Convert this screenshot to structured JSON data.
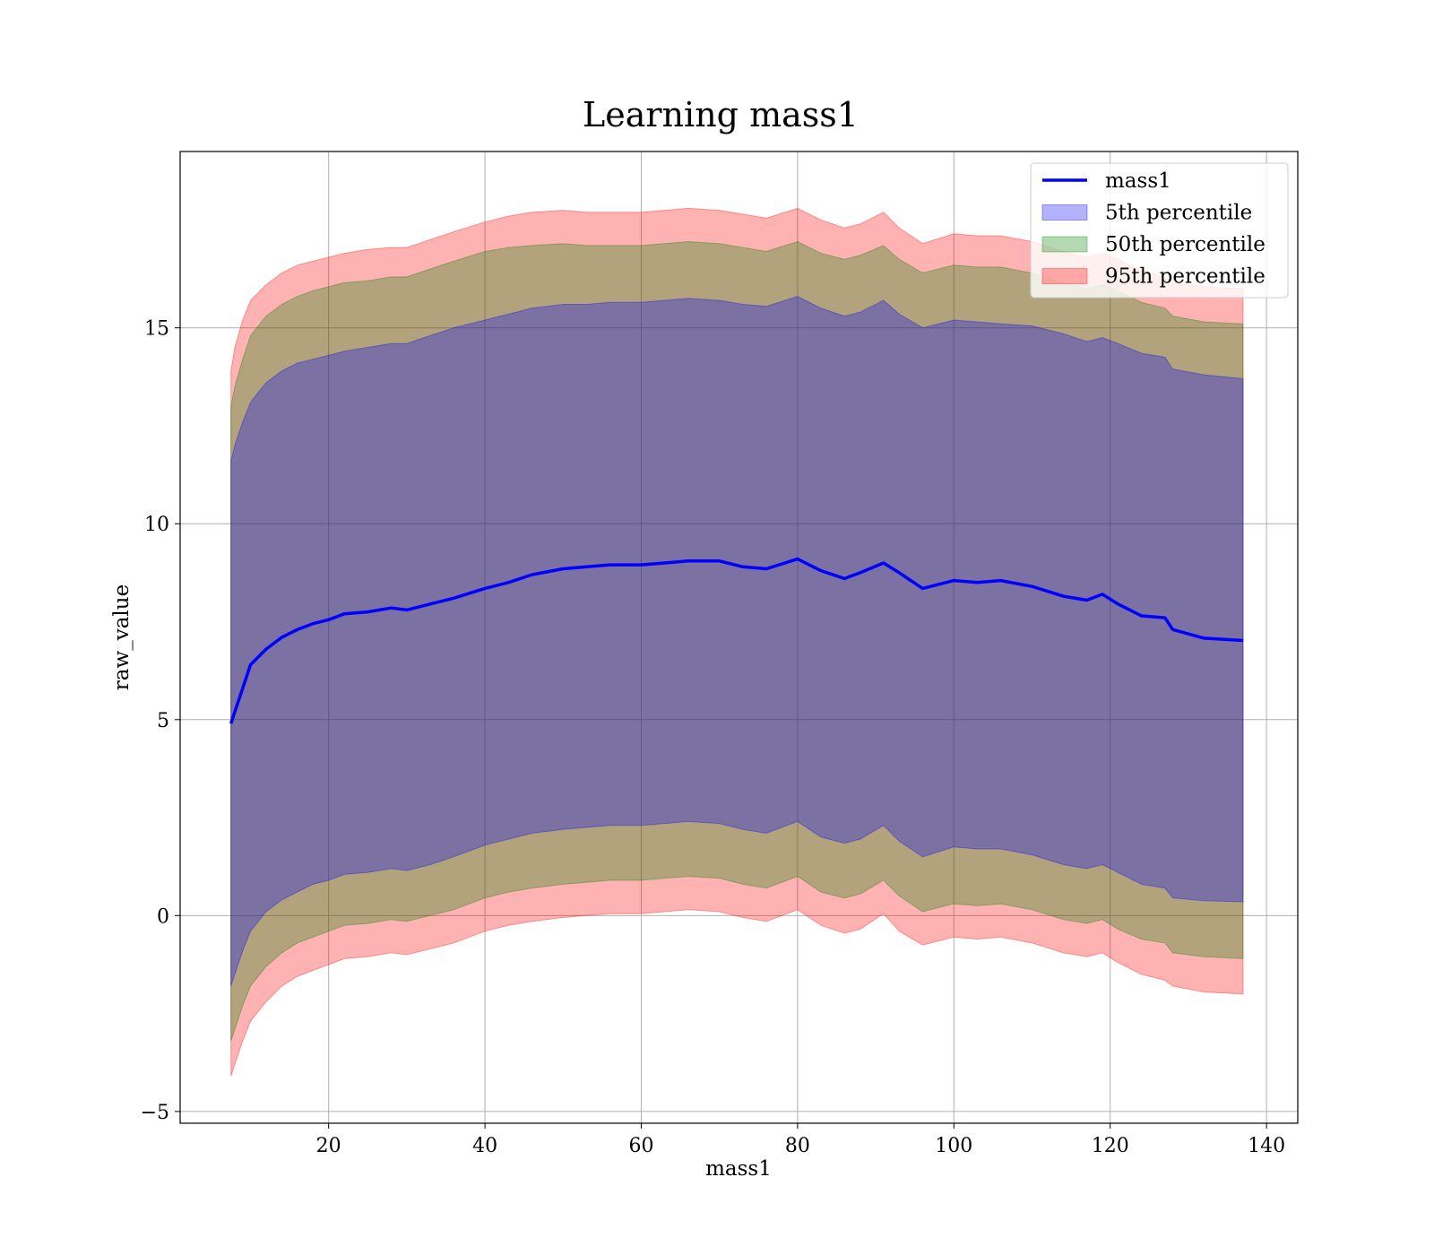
{
  "chart_data": {
    "type": "area",
    "title": "Learning mass1",
    "xlabel": "mass1",
    "ylabel": "raw_value",
    "xlim": [
      1,
      144
    ],
    "ylim": [
      -5.3,
      19.5
    ],
    "xticks": [
      20,
      40,
      60,
      80,
      100,
      120,
      140
    ],
    "yticks": [
      -5,
      0,
      5,
      10,
      15
    ],
    "grid": true,
    "legend_position": "top-right",
    "x": [
      7.5,
      8,
      9,
      10,
      12,
      14,
      16,
      18,
      20,
      22,
      25,
      28,
      30,
      33,
      36,
      40,
      43,
      46,
      50,
      53,
      56,
      60,
      63,
      66,
      70,
      73,
      76,
      80,
      83,
      86,
      88,
      91,
      93,
      96,
      100,
      103,
      106,
      110,
      114,
      117,
      119,
      121,
      124,
      127,
      128,
      132,
      137
    ],
    "series": [
      {
        "name": "mass1",
        "kind": "line",
        "color": "#0000ff",
        "values": [
          4.9,
          5.2,
          5.8,
          6.4,
          6.8,
          7.1,
          7.3,
          7.45,
          7.55,
          7.7,
          7.75,
          7.85,
          7.8,
          7.95,
          8.1,
          8.35,
          8.5,
          8.7,
          8.85,
          8.9,
          8.95,
          8.95,
          9.0,
          9.05,
          9.05,
          8.9,
          8.85,
          9.1,
          8.8,
          8.6,
          8.75,
          9.0,
          8.75,
          8.35,
          8.55,
          8.5,
          8.55,
          8.4,
          8.15,
          8.05,
          8.2,
          7.95,
          7.65,
          7.6,
          7.3,
          7.08,
          7.02
        ]
      },
      {
        "name": "5th percentile",
        "kind": "band",
        "color": "#0000ff",
        "upper": [
          11.6,
          12.0,
          12.6,
          13.1,
          13.6,
          13.9,
          14.1,
          14.2,
          14.3,
          14.4,
          14.5,
          14.6,
          14.6,
          14.8,
          15.0,
          15.2,
          15.35,
          15.5,
          15.6,
          15.6,
          15.65,
          15.65,
          15.7,
          15.75,
          15.7,
          15.6,
          15.55,
          15.8,
          15.5,
          15.3,
          15.4,
          15.7,
          15.35,
          15.0,
          15.2,
          15.15,
          15.1,
          15.05,
          14.85,
          14.65,
          14.75,
          14.6,
          14.35,
          14.25,
          13.95,
          13.8,
          13.7
        ],
        "lower": [
          -1.8,
          -1.5,
          -0.9,
          -0.4,
          0.1,
          0.4,
          0.6,
          0.8,
          0.9,
          1.05,
          1.1,
          1.2,
          1.15,
          1.3,
          1.5,
          1.8,
          1.95,
          2.1,
          2.2,
          2.25,
          2.3,
          2.3,
          2.35,
          2.4,
          2.35,
          2.2,
          2.1,
          2.4,
          2.0,
          1.85,
          1.95,
          2.3,
          1.9,
          1.5,
          1.75,
          1.7,
          1.7,
          1.55,
          1.3,
          1.2,
          1.3,
          1.1,
          0.8,
          0.7,
          0.45,
          0.38,
          0.35
        ]
      },
      {
        "name": "50th percentile",
        "kind": "band",
        "color": "#008000",
        "upper": [
          13.0,
          13.5,
          14.2,
          14.8,
          15.3,
          15.6,
          15.8,
          15.95,
          16.05,
          16.15,
          16.2,
          16.3,
          16.3,
          16.5,
          16.7,
          16.95,
          17.05,
          17.1,
          17.15,
          17.1,
          17.1,
          17.1,
          17.15,
          17.2,
          17.15,
          17.05,
          16.95,
          17.2,
          16.9,
          16.75,
          16.85,
          17.1,
          16.75,
          16.4,
          16.6,
          16.55,
          16.55,
          16.4,
          16.15,
          16.0,
          16.1,
          15.95,
          15.65,
          15.5,
          15.3,
          15.15,
          15.1
        ],
        "lower": [
          -3.2,
          -2.9,
          -2.3,
          -1.8,
          -1.3,
          -0.95,
          -0.7,
          -0.55,
          -0.4,
          -0.25,
          -0.2,
          -0.1,
          -0.15,
          0.0,
          0.15,
          0.45,
          0.6,
          0.7,
          0.8,
          0.85,
          0.9,
          0.9,
          0.95,
          1.0,
          0.95,
          0.8,
          0.7,
          1.0,
          0.6,
          0.45,
          0.55,
          0.9,
          0.5,
          0.1,
          0.3,
          0.25,
          0.3,
          0.15,
          -0.1,
          -0.2,
          -0.1,
          -0.35,
          -0.6,
          -0.7,
          -0.95,
          -1.05,
          -1.1
        ]
      },
      {
        "name": "95th percentile",
        "kind": "band",
        "color": "#ff0000",
        "upper": [
          13.9,
          14.5,
          15.2,
          15.7,
          16.1,
          16.4,
          16.6,
          16.7,
          16.8,
          16.9,
          17.0,
          17.05,
          17.05,
          17.25,
          17.45,
          17.7,
          17.85,
          17.95,
          18.0,
          17.95,
          17.95,
          17.95,
          18.0,
          18.05,
          18.0,
          17.9,
          17.8,
          18.05,
          17.75,
          17.55,
          17.65,
          17.95,
          17.55,
          17.15,
          17.4,
          17.35,
          17.35,
          17.2,
          16.95,
          16.8,
          16.9,
          16.75,
          16.45,
          16.3,
          16.15,
          16.05,
          16.0
        ],
        "lower": [
          -4.1,
          -3.8,
          -3.2,
          -2.7,
          -2.2,
          -1.8,
          -1.55,
          -1.4,
          -1.25,
          -1.1,
          -1.05,
          -0.95,
          -1.0,
          -0.85,
          -0.7,
          -0.4,
          -0.25,
          -0.15,
          -0.05,
          0.0,
          0.05,
          0.05,
          0.1,
          0.15,
          0.1,
          -0.05,
          -0.15,
          0.15,
          -0.25,
          -0.45,
          -0.35,
          0.05,
          -0.4,
          -0.75,
          -0.55,
          -0.6,
          -0.55,
          -0.7,
          -0.95,
          -1.05,
          -0.95,
          -1.2,
          -1.5,
          -1.65,
          -1.8,
          -1.95,
          -2.0
        ]
      }
    ]
  }
}
